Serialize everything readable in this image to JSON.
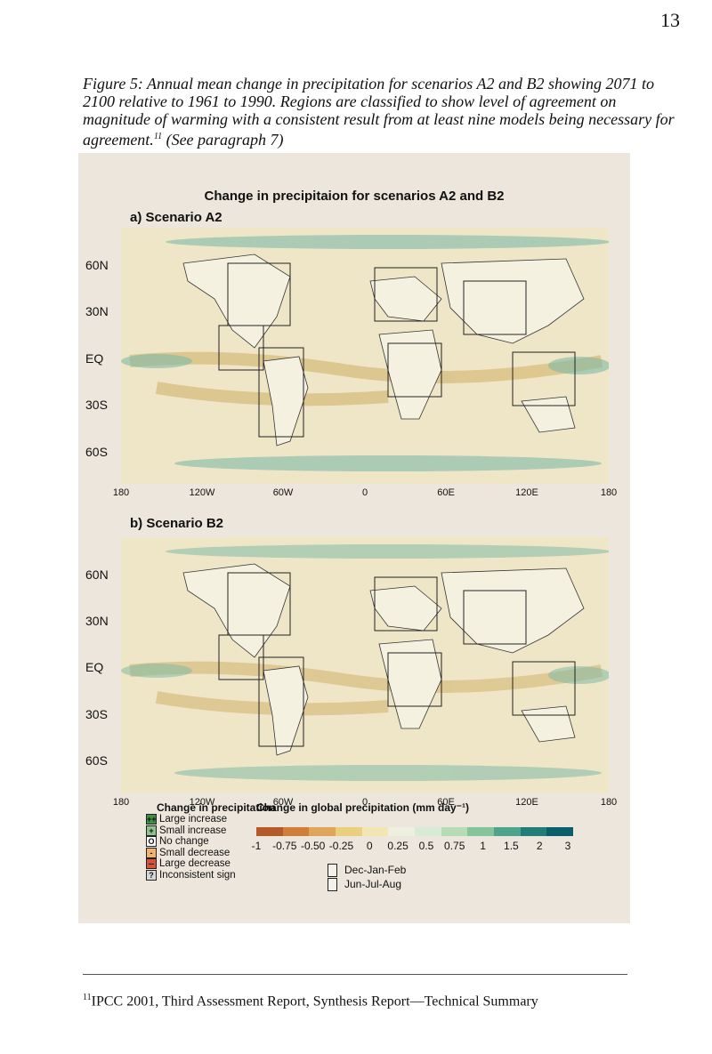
{
  "page_number": "13",
  "caption": {
    "text": "Figure 5: Annual mean change in precipitation for scenarios A2 and B2 showing 2071 to 2100 relative to 1961 to 1990. Regions are classified to show level of agreement on magnitude of warming with a consistent result from at least nine models being necessary for agreement.",
    "footnote_ref": "11",
    "suffix": "(See paragraph 7)"
  },
  "figure": {
    "title": "Change in precipitaion for scenarios A2 and B2",
    "panel_a_label": "a) Scenario A2",
    "panel_b_label": "b) Scenario B2",
    "lat_labels": [
      "60N",
      "30N",
      "EQ",
      "30S",
      "60S"
    ],
    "lon_labels": [
      "180",
      "120W",
      "60W",
      "0",
      "60E",
      "120E",
      "180"
    ],
    "legend": {
      "title_left": "Change in precipitation",
      "title_right": "Change in global precipitation (mm day⁻¹)",
      "items": [
        {
          "symbol": "++",
          "label": "Large increase",
          "color": "#3f8f45"
        },
        {
          "symbol": "+",
          "label": "Small increase",
          "color": "#8cc48a"
        },
        {
          "symbol": "O",
          "label": "No change",
          "color": "#ffffff"
        },
        {
          "symbol": "-",
          "label": "Small decrease",
          "color": "#f2b26b"
        },
        {
          "symbol": "--",
          "label": "Large decrease",
          "color": "#d4533a"
        },
        {
          "symbol": "?",
          "label": "Inconsistent sign",
          "color": "#d7d7d7"
        }
      ],
      "colorbar_ticks": [
        "-1",
        "-0.75",
        "-0.50",
        "-0.25",
        "0",
        "0.25",
        "0.5",
        "0.75",
        "1",
        "1.5",
        "2",
        "3"
      ],
      "colorbar_colors": [
        "#b45a2a",
        "#cf7f3a",
        "#dfa55a",
        "#ead07e",
        "#f1e6b4",
        "#efefe0",
        "#d8ecd5",
        "#b6dcb6",
        "#86c49a",
        "#4ea58c",
        "#207d7a",
        "#0b5f6a"
      ],
      "season_key": [
        "Dec-Jan-Feb",
        "Jun-Jul-Aug"
      ]
    }
  },
  "footnote": {
    "number": "11",
    "text": "IPCC 2001, Third Assessment Report, Synthesis Report—Technical Summary"
  }
}
